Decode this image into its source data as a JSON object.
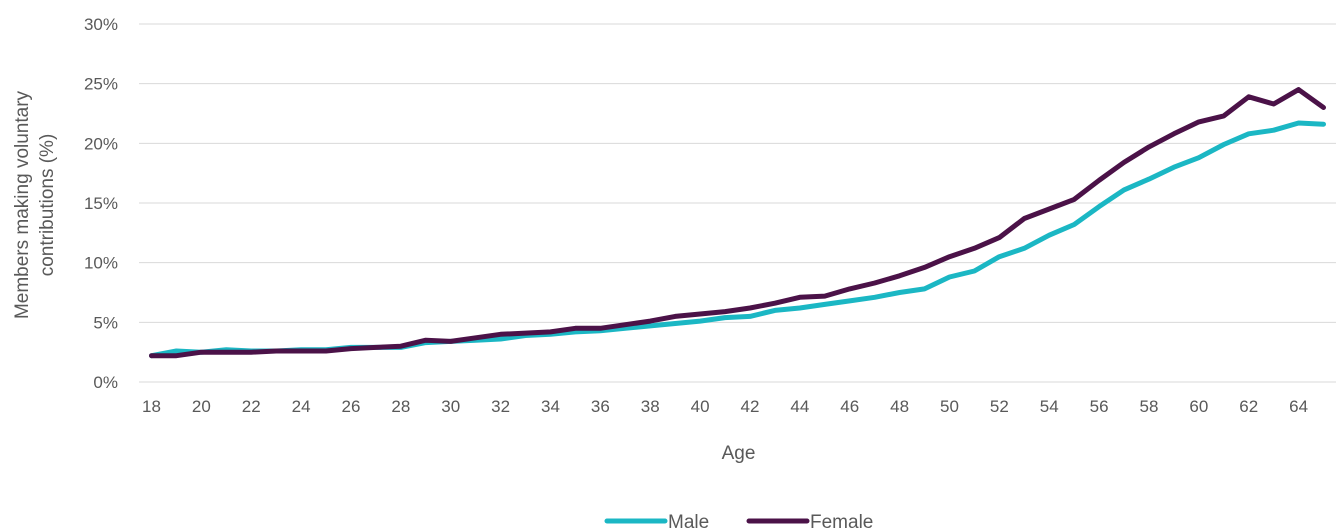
{
  "chart_data": {
    "type": "line",
    "title": "",
    "xlabel": "Age",
    "ylabel": "Members making voluntary contributions (%)",
    "ylabel_lines": [
      "Members making voluntary",
      "contributions (%)"
    ],
    "ylim": [
      0,
      30
    ],
    "yticks": [
      0,
      5,
      10,
      15,
      20,
      25,
      30
    ],
    "ytick_labels": [
      "0%",
      "5%",
      "10%",
      "15%",
      "20%",
      "25%",
      "30%"
    ],
    "xticks": [
      18,
      20,
      22,
      24,
      26,
      28,
      30,
      32,
      34,
      36,
      38,
      40,
      42,
      44,
      46,
      48,
      50,
      52,
      54,
      56,
      58,
      60,
      62,
      64
    ],
    "xtick_labels": [
      "18",
      "20",
      "22",
      "24",
      "26",
      "28",
      "30",
      "32",
      "34",
      "36",
      "38",
      "40",
      "42",
      "44",
      "46",
      "48",
      "50",
      "52",
      "54",
      "56",
      "58",
      "60",
      "62",
      "64"
    ],
    "x": [
      18,
      19,
      20,
      21,
      22,
      23,
      24,
      25,
      26,
      27,
      28,
      29,
      30,
      31,
      32,
      33,
      34,
      35,
      36,
      37,
      38,
      39,
      40,
      41,
      42,
      43,
      44,
      45,
      46,
      47,
      48,
      49,
      50,
      51,
      52,
      53,
      54,
      55,
      56,
      57,
      58,
      59,
      60,
      61,
      62,
      63,
      64,
      65
    ],
    "series": [
      {
        "name": "Male",
        "color": "#1BB7C4",
        "values": [
          2.2,
          2.6,
          2.5,
          2.7,
          2.6,
          2.6,
          2.7,
          2.7,
          2.9,
          2.9,
          2.9,
          3.3,
          3.4,
          3.5,
          3.6,
          3.9,
          4.0,
          4.2,
          4.3,
          4.5,
          4.7,
          4.9,
          5.1,
          5.4,
          5.5,
          6.0,
          6.2,
          6.5,
          6.8,
          7.1,
          7.5,
          7.8,
          8.8,
          9.3,
          10.5,
          11.2,
          12.3,
          13.2,
          14.7,
          16.1,
          17.0,
          18.0,
          18.8,
          19.9,
          20.8,
          21.1,
          21.7,
          21.6
        ]
      },
      {
        "name": "Female",
        "color": "#4B1248",
        "values": [
          2.2,
          2.2,
          2.5,
          2.5,
          2.5,
          2.6,
          2.6,
          2.6,
          2.8,
          2.9,
          3.0,
          3.5,
          3.4,
          3.7,
          4.0,
          4.1,
          4.2,
          4.5,
          4.5,
          4.8,
          5.1,
          5.5,
          5.7,
          5.9,
          6.2,
          6.6,
          7.1,
          7.2,
          7.8,
          8.3,
          8.9,
          9.6,
          10.5,
          11.2,
          12.1,
          13.7,
          14.5,
          15.3,
          16.9,
          18.4,
          19.7,
          20.8,
          21.8,
          22.3,
          23.9,
          23.3,
          24.5,
          23.0
        ]
      }
    ],
    "legend": {
      "position": "bottom",
      "entries": [
        "Male",
        "Female"
      ]
    },
    "grid": true
  }
}
